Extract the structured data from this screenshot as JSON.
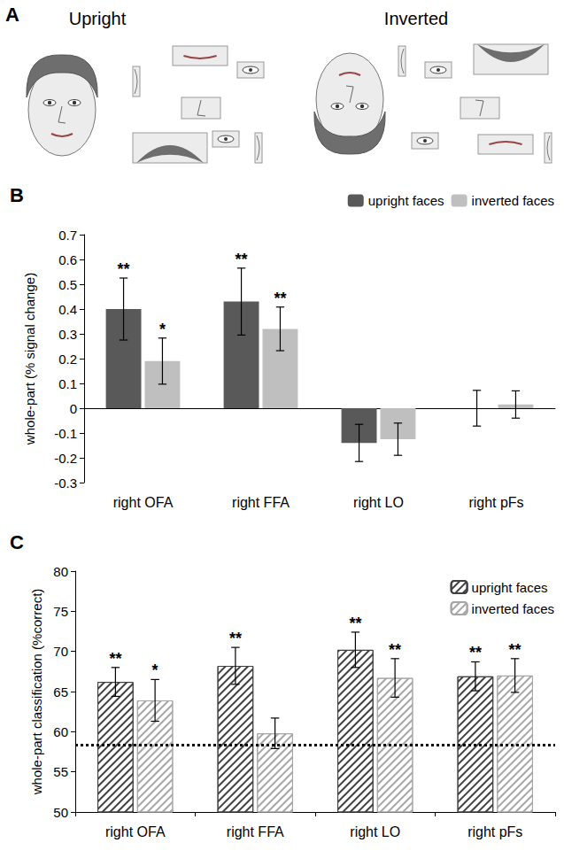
{
  "panel_a": {
    "panel_label": "A",
    "images": [
      {
        "caption": "Upright"
      },
      {
        "caption": "Inverted"
      }
    ]
  },
  "chart_data": [
    {
      "panel_label": "B",
      "type": "bar",
      "y_label": "whole-part (% signal change)",
      "categories": [
        "right OFA",
        "right FFA",
        "right LO",
        "right pFs"
      ],
      "series": [
        {
          "name": "upright faces",
          "color": "#595959",
          "values": [
            0.4,
            0.43,
            -0.14,
            0.0
          ],
          "errors": [
            0.125,
            0.135,
            0.075,
            0.072
          ],
          "annotations": [
            "**",
            "**",
            null,
            null
          ]
        },
        {
          "name": "inverted faces",
          "color": "#bfbfbf",
          "values": [
            0.19,
            0.32,
            -0.125,
            0.015
          ],
          "errors": [
            0.093,
            0.088,
            0.065,
            0.055
          ],
          "annotations": [
            "*",
            "**",
            null,
            null
          ]
        }
      ],
      "ylim": [
        -0.3,
        0.7
      ],
      "yticks": [
        -0.3,
        -0.2,
        -0.1,
        0,
        0.1,
        0.2,
        0.3,
        0.4,
        0.5,
        0.6,
        0.7
      ],
      "grid": false,
      "legend": "top-right"
    },
    {
      "panel_label": "C",
      "type": "bar",
      "y_label": "whole-part classification (%correct)",
      "categories": [
        "right OFA",
        "right FFA",
        "right LO",
        "right pFs"
      ],
      "series": [
        {
          "name": "upright faces",
          "color": "#404040",
          "marker": "hatched",
          "values": [
            66.2,
            68.2,
            70.2,
            66.9
          ],
          "errors": [
            1.8,
            2.3,
            2.2,
            1.8
          ],
          "annotations": [
            "**",
            "**",
            "**",
            "**"
          ]
        },
        {
          "name": "inverted faces",
          "color": "#a6a6a6",
          "marker": "hatched",
          "values": [
            63.9,
            59.8,
            66.7,
            67.0
          ],
          "errors": [
            2.6,
            1.9,
            2.4,
            2.1
          ],
          "annotations": [
            "*",
            null,
            "**",
            "**"
          ]
        }
      ],
      "threshold": 58.4,
      "ylim": [
        50,
        80
      ],
      "yticks": [
        50,
        55,
        60,
        65,
        70,
        75,
        80
      ],
      "grid": false,
      "legend": "top-right"
    }
  ]
}
